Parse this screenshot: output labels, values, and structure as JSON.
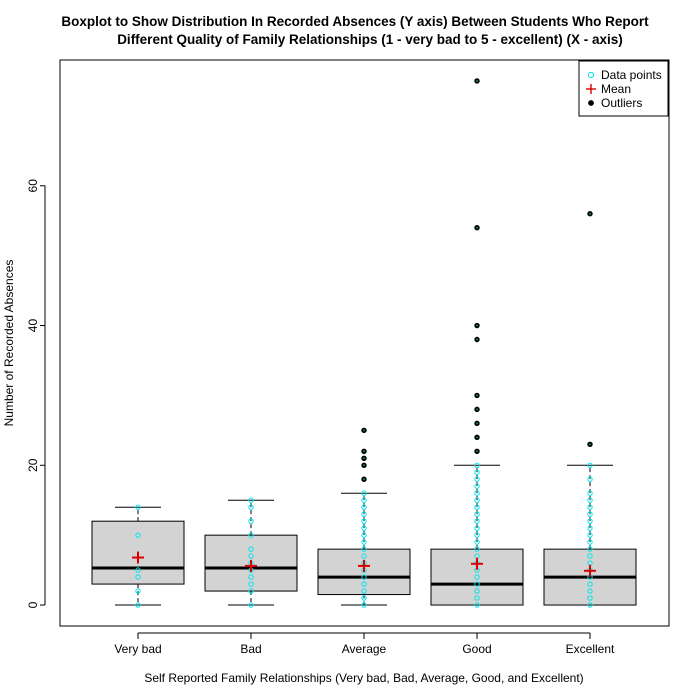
{
  "chart_data": {
    "type": "boxplot",
    "title_lines": [
      "Boxplot to Show Distribution In Recorded Absences (Y axis) Between Students Who Report",
      "Different Quality of Family Relationships (1 - very bad to 5 - excellent) (X - axis)"
    ],
    "xlabel": "Self Reported Family Relationships (Very bad, Bad, Average, Good, and Excellent)",
    "ylabel": "Number of Recorded Absences",
    "categories": [
      "Very bad",
      "Bad",
      "Average",
      "Good",
      "Excellent"
    ],
    "ylim": [
      -3,
      78
    ],
    "yticks": [
      0,
      20,
      40,
      60
    ],
    "ytick_labels": [
      "0",
      "20",
      "40",
      "60"
    ],
    "legend": {
      "position": "top-right",
      "items": [
        {
          "label": "Data points",
          "symbol": "open-circle",
          "color": "#00e5ee"
        },
        {
          "label": "Mean",
          "symbol": "plus",
          "color": "#e00000"
        },
        {
          "label": "Outliers",
          "symbol": "filled-circle",
          "color": "#000000"
        }
      ]
    },
    "colors": {
      "box_fill": "#d3d3d3",
      "data_points": "#00e5ee",
      "mean": "#e00000",
      "outliers": "#000000",
      "outlier_inner": "#008b8b"
    },
    "boxes": [
      {
        "category": "Very bad",
        "whisker_low": 0,
        "q1": 3,
        "median": 5.3,
        "q3": 12,
        "whisker_high": 14,
        "mean": 6.8,
        "points": [
          0,
          2,
          4,
          5,
          10,
          14
        ],
        "outliers": []
      },
      {
        "category": "Bad",
        "whisker_low": 0,
        "q1": 2,
        "median": 5.3,
        "q3": 10,
        "whisker_high": 15,
        "mean": 5.6,
        "points": [
          0,
          2,
          3,
          4,
          5,
          6,
          7,
          8,
          10,
          12,
          14,
          15
        ],
        "outliers": []
      },
      {
        "category": "Average",
        "whisker_low": 0,
        "q1": 1.5,
        "median": 4,
        "q3": 8,
        "whisker_high": 16,
        "mean": 5.6,
        "points": [
          0,
          1,
          2,
          3,
          4,
          5,
          6,
          7,
          8,
          9,
          10,
          11,
          12,
          13,
          14,
          15,
          16
        ],
        "outliers": [
          18,
          20,
          21,
          22,
          25
        ]
      },
      {
        "category": "Good",
        "whisker_low": 0,
        "q1": 0,
        "median": 3,
        "q3": 8,
        "whisker_high": 20,
        "mean": 5.9,
        "points": [
          0,
          1,
          2,
          3,
          4,
          5,
          6,
          7,
          8,
          9,
          10,
          11,
          12,
          13,
          14,
          15,
          16,
          17,
          18,
          19,
          20
        ],
        "outliers": [
          22,
          24,
          26,
          28,
          30,
          38,
          40,
          54,
          75
        ]
      },
      {
        "category": "Excellent",
        "whisker_low": 0,
        "q1": 0,
        "median": 4,
        "q3": 8,
        "whisker_high": 20,
        "mean": 4.9,
        "points": [
          0,
          1,
          2,
          3,
          4,
          5,
          6,
          7,
          8,
          9,
          10,
          11,
          12,
          13,
          14,
          15,
          16,
          18,
          20
        ],
        "outliers": [
          23,
          56
        ]
      }
    ]
  }
}
